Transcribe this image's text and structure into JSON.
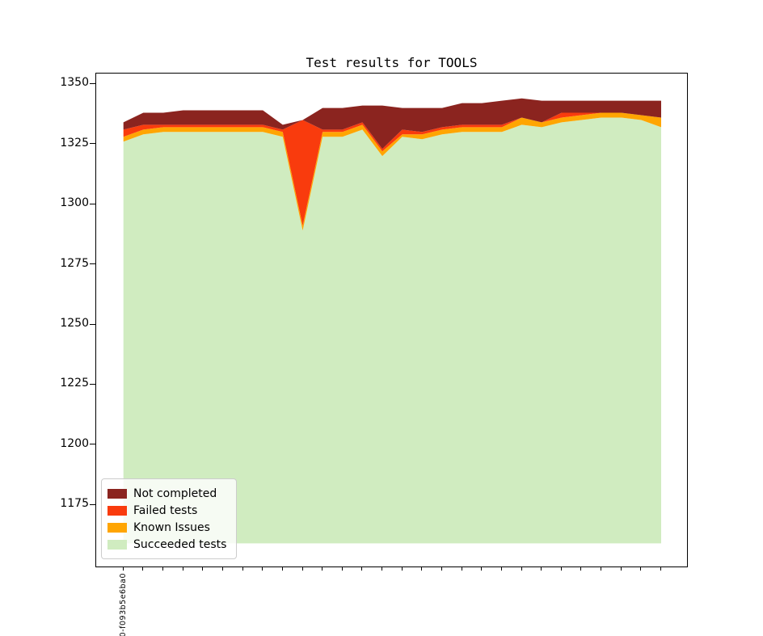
{
  "title": "Test results for TOOLS",
  "chart_data": {
    "type": "area",
    "stacked": true,
    "title": "Test results for TOOLS",
    "n_points": 28,
    "x_first_label": "0-f093b5e6ba0",
    "baseline": 1159,
    "ylim": [
      1149.4,
      1354.3
    ],
    "yticks": [
      1175,
      1200,
      1225,
      1250,
      1275,
      1300,
      1325,
      1350
    ],
    "grid": false,
    "legend_position": "lower left",
    "series": [
      {
        "name": "Succeeded tests",
        "color": "#d0ecc0",
        "values": [
          1326,
          1329,
          1330,
          1330,
          1330,
          1330,
          1330,
          1330,
          1328,
          1289,
          1328,
          1328,
          1331,
          1320,
          1328,
          1327,
          1329,
          1330,
          1330,
          1330,
          1333,
          1332,
          1334,
          1335,
          1336,
          1336,
          1335,
          1332
        ]
      },
      {
        "name": "Known Issues",
        "color": "#ffa502",
        "values": [
          2,
          2,
          2,
          2,
          2,
          2,
          2,
          2,
          2,
          2,
          2,
          2,
          2,
          2,
          1,
          2,
          2,
          2,
          2,
          2,
          3,
          2,
          2,
          2,
          2,
          2,
          2,
          4
        ]
      },
      {
        "name": "Failed tests",
        "color": "#f93b0d",
        "values": [
          3,
          2,
          1,
          1,
          1,
          1,
          1,
          1,
          1,
          44,
          1,
          1,
          1,
          1,
          2,
          1,
          1,
          1,
          1,
          1,
          0,
          0,
          2,
          1,
          0,
          0,
          0,
          0
        ]
      },
      {
        "name": "Not completed",
        "color": "#8b241f",
        "values": [
          3,
          5,
          5,
          6,
          6,
          6,
          6,
          6,
          2,
          0,
          9,
          9,
          7,
          18,
          9,
          10,
          8,
          9,
          9,
          10,
          8,
          9,
          5,
          5,
          5,
          5,
          6,
          7
        ]
      }
    ]
  },
  "legend": {
    "items": [
      {
        "label": "Not completed",
        "color": "#8b241f"
      },
      {
        "label": "Failed tests",
        "color": "#f93b0d"
      },
      {
        "label": "Known Issues",
        "color": "#ffa502"
      },
      {
        "label": "Succeeded tests",
        "color": "#d0ecc0"
      }
    ]
  },
  "axis": {
    "color": "#000000"
  }
}
